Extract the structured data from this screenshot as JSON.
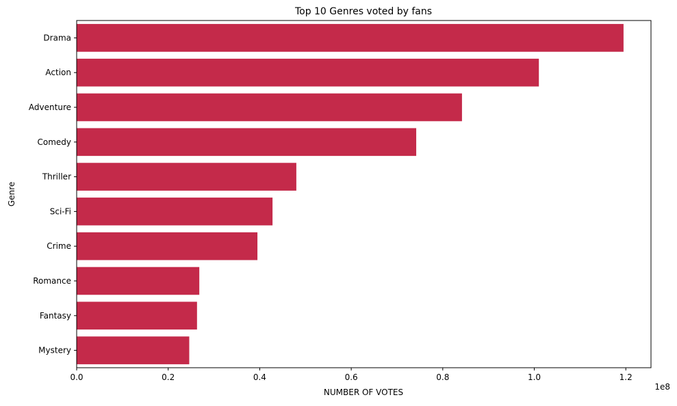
{
  "chart_data": {
    "type": "bar",
    "orientation": "horizontal",
    "title": "Top 10 Genres voted by fans",
    "xlabel": "NUMBER OF VOTES",
    "ylabel": "Genre",
    "x_scale_note": "1e8",
    "categories": [
      "Drama",
      "Action",
      "Adventure",
      "Comedy",
      "Thriller",
      "Sci-Fi",
      "Crime",
      "Romance",
      "Fantasy",
      "Mystery"
    ],
    "values": [
      119500000,
      101000000,
      84200000,
      74200000,
      48000000,
      42800000,
      39500000,
      26800000,
      26300000,
      24600000
    ],
    "xlim": [
      0,
      125500000
    ],
    "x_ticks": [
      0,
      20000000,
      40000000,
      60000000,
      80000000,
      100000000,
      120000000
    ],
    "x_tick_labels": [
      "0.0",
      "0.2",
      "0.4",
      "0.6",
      "0.8",
      "1.0",
      "1.2"
    ],
    "bar_color": "#c42a4a",
    "grid": false,
    "legend": "none"
  }
}
